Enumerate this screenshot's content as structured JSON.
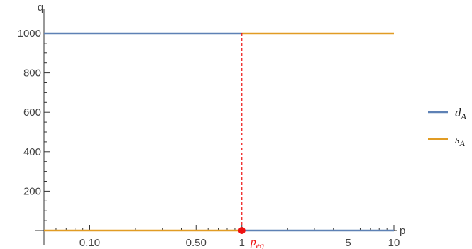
{
  "chart_data": {
    "type": "line",
    "x_scale": "log",
    "xlabel": "p",
    "ylabel": "q",
    "xlim": [
      0.05,
      10
    ],
    "ylim": [
      0,
      1000
    ],
    "x_ticks": [
      {
        "value": 0.1,
        "label": "0.10"
      },
      {
        "value": 0.5,
        "label": "0.50"
      },
      {
        "value": 1,
        "label": "1"
      },
      {
        "value": 5,
        "label": "5"
      },
      {
        "value": 10,
        "label": "10"
      }
    ],
    "y_ticks": [
      {
        "value": 200,
        "label": "200"
      },
      {
        "value": 400,
        "label": "400"
      },
      {
        "value": 600,
        "label": "600"
      },
      {
        "value": 800,
        "label": "800"
      },
      {
        "value": 1000,
        "label": "1000"
      }
    ],
    "series": [
      {
        "name": "d_A",
        "name_main": "d",
        "name_sub": "A",
        "color": "#5e81b5",
        "points": [
          [
            0.05,
            1000
          ],
          [
            1,
            1000
          ],
          [
            1,
            0
          ],
          [
            10,
            0
          ]
        ]
      },
      {
        "name": "s_A",
        "name_main": "s",
        "name_sub": "A",
        "color": "#e19c24",
        "points": [
          [
            0.05,
            0
          ],
          [
            1,
            0
          ],
          [
            1,
            1000
          ],
          [
            10,
            1000
          ]
        ]
      }
    ],
    "equilibrium": {
      "x": 1,
      "y": 0,
      "label_main": "p",
      "label_sub": "eq",
      "color": "#ee1111"
    },
    "grid": false,
    "legend_position": "right"
  }
}
